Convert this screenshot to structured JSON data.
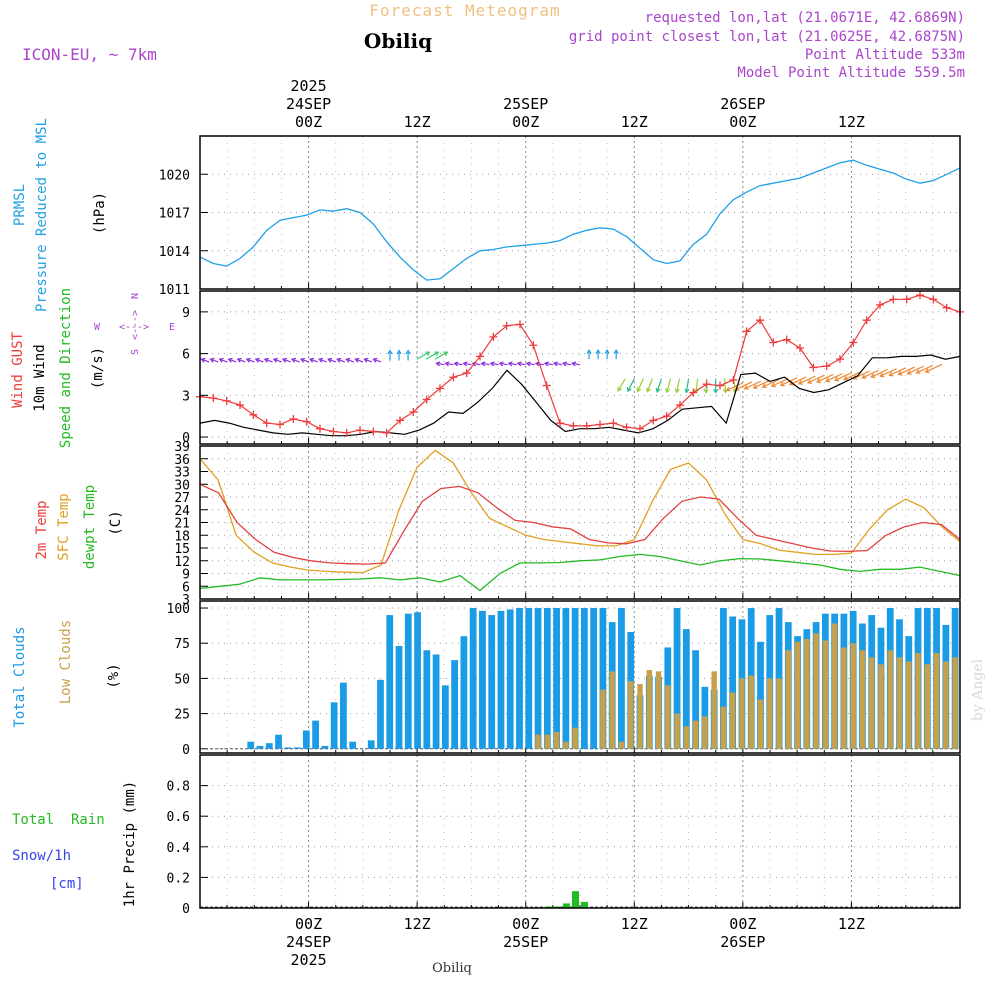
{
  "header": {
    "title": "Forecast Meteogram",
    "station": "Obiliq",
    "model": "ICON-EU, ~ 7km",
    "requested": "requested lon,lat (21.0671E, 42.6869N)",
    "grid_point": "grid point closest lon,lat (21.0625E, 42.6875N)",
    "point_altitude": "Point Altitude 533m",
    "model_altitude": "Model Point Altitude 559.5m",
    "footer_station": "Obiliq",
    "credit": "by Angel"
  },
  "time_axis": {
    "hours_total": 84,
    "ticks": [
      {
        "hour": 12,
        "label": "00Z",
        "date": "24SEP",
        "year": "2025"
      },
      {
        "hour": 24,
        "label": "12Z",
        "date": "",
        "year": ""
      },
      {
        "hour": 36,
        "label": "00Z",
        "date": "25SEP",
        "year": ""
      },
      {
        "hour": 48,
        "label": "12Z",
        "date": "",
        "year": ""
      },
      {
        "hour": 60,
        "label": "00Z",
        "date": "26SEP",
        "year": ""
      },
      {
        "hour": 72,
        "label": "12Z",
        "date": "",
        "year": ""
      }
    ]
  },
  "colors": {
    "pressure": "#1fa0e6",
    "gust": "#ee3b3b",
    "wind": "#000000",
    "winddir": "#22bb22",
    "temp": "#e44040",
    "sfctemp": "#e0a020",
    "dewpt": "#22bb22",
    "cloud_total": "#1a9be6",
    "cloud_low": "#c8a04a",
    "rain": "#22bb22",
    "snow": "#3344ee",
    "title": "#f0c080",
    "info": "#aa44cc"
  },
  "chart_data": [
    {
      "type": "line",
      "id": "pressure",
      "title": "PRMSL Pressure Reduced to MSL",
      "ylabel_lines": [
        "PRMSL",
        "Pressure Reduced to MSL"
      ],
      "unit": "(hPa)",
      "ylim": [
        1011,
        1023
      ],
      "yticks": [
        1011,
        1014,
        1017,
        1020
      ],
      "series": [
        {
          "name": "PRMSL",
          "values": [
            1013.5,
            1013.0,
            1012.8,
            1013.4,
            1014.3,
            1015.6,
            1016.4,
            1016.6,
            1016.8,
            1017.2,
            1017.1,
            1017.3,
            1017.0,
            1016.1,
            1014.7,
            1013.5,
            1012.5,
            1011.7,
            1011.8,
            1012.6,
            1013.4,
            1014.0,
            1014.1,
            1014.3,
            1014.4,
            1014.5,
            1014.6,
            1014.8,
            1015.3,
            1015.6,
            1015.8,
            1015.7,
            1015.1,
            1014.2,
            1013.3,
            1013.0,
            1013.2,
            1014.5,
            1015.3,
            1016.9,
            1018.0,
            1018.6,
            1019.1,
            1019.3,
            1019.5,
            1019.7,
            1020.1,
            1020.5,
            1020.9,
            1021.1,
            1020.7,
            1020.4,
            1020.1,
            1019.6,
            1019.3,
            1019.5,
            1020.0,
            1020.5
          ]
        }
      ]
    },
    {
      "type": "line",
      "id": "wind",
      "title": "Wind GUST / 10m Wind Speed and Direction",
      "ylabel_lines": [
        "Wind GUST",
        "10m Wind",
        "Speed and Direction"
      ],
      "unit": "(m/s)",
      "compass": {
        "north": "N",
        "south": "S",
        "west": "W",
        "east": "E",
        "arrow": "<--->"
      },
      "ylim": [
        -0.5,
        10.5
      ],
      "yticks": [
        0,
        3,
        6,
        9
      ],
      "series": [
        {
          "name": "Wind GUST",
          "values": [
            2.9,
            2.8,
            2.6,
            2.3,
            1.6,
            1.0,
            0.9,
            1.3,
            1.1,
            0.6,
            0.4,
            0.3,
            0.5,
            0.4,
            0.3,
            1.2,
            1.8,
            2.7,
            3.5,
            4.3,
            4.6,
            5.8,
            7.2,
            8.0,
            8.1,
            6.6,
            3.7,
            1.0,
            0.8,
            0.8,
            0.9,
            1.0,
            0.7,
            0.6,
            1.2,
            1.5,
            2.3,
            3.2,
            3.8,
            3.7,
            4.1,
            7.6,
            8.4,
            6.8,
            7.0,
            6.4,
            5.0,
            5.1,
            5.6,
            6.8,
            8.4,
            9.5,
            9.9,
            9.9,
            10.2,
            9.9,
            9.3,
            9.0
          ]
        },
        {
          "name": "10m Wind",
          "values": [
            1.0,
            1.2,
            1.0,
            0.7,
            0.5,
            0.3,
            0.2,
            0.3,
            0.2,
            0.1,
            0.1,
            0.2,
            0.4,
            0.3,
            0.2,
            0.5,
            1.0,
            1.8,
            1.7,
            2.5,
            3.5,
            4.8,
            3.8,
            2.5,
            1.2,
            0.4,
            0.6,
            0.6,
            0.7,
            0.5,
            0.3,
            0.6,
            1.2,
            2.0,
            2.1,
            2.2,
            1.0,
            4.5,
            4.6,
            4.0,
            4.3,
            3.5,
            3.2,
            3.4,
            3.9,
            4.4,
            5.7,
            5.7,
            5.8,
            5.8,
            5.9,
            5.6,
            5.8
          ]
        },
        {
          "name": "Speed and Direction",
          "values": []
        }
      ]
    },
    {
      "type": "line",
      "id": "temp",
      "title": "2m Temp / SFC Temp / dewpt Temp",
      "ylabel_lines": [
        "2m Temp",
        "SFC Temp",
        "dewpt Temp"
      ],
      "unit": "(C)",
      "ylim": [
        3,
        39
      ],
      "yticks": [
        3,
        6,
        9,
        12,
        15,
        18,
        21,
        24,
        27,
        30,
        33,
        36,
        39
      ],
      "series": [
        {
          "name": "2m Temp",
          "values": [
            30.0,
            28.0,
            21.0,
            17.0,
            14.0,
            12.8,
            12.0,
            11.5,
            11.3,
            11.2,
            11.5,
            19.0,
            26.0,
            29.0,
            29.5,
            28.0,
            24.5,
            21.5,
            21.0,
            20.0,
            19.5,
            17.0,
            16.2,
            16.0,
            17.0,
            22.0,
            26.0,
            27.0,
            26.5,
            22.0,
            18.0,
            17.0,
            16.0,
            15.0,
            14.3,
            14.2,
            14.4,
            18.0,
            20.0,
            21.0,
            20.5,
            17.0
          ]
        },
        {
          "name": "SFC Temp",
          "values": [
            36.0,
            31.0,
            18.0,
            14.0,
            11.5,
            10.5,
            9.8,
            9.5,
            9.3,
            9.2,
            11.0,
            24.0,
            34.0,
            38.0,
            35.0,
            28.0,
            22.0,
            20.0,
            18.0,
            17.0,
            16.5,
            16.0,
            15.5,
            15.5,
            17.0,
            26.0,
            33.5,
            35.0,
            31.0,
            23.0,
            17.0,
            16.0,
            14.5,
            14.0,
            13.5,
            13.5,
            13.8,
            19.5,
            24.0,
            26.5,
            24.5,
            20.0,
            16.5
          ]
        },
        {
          "name": "dewpt Temp",
          "values": [
            5.5,
            6.0,
            6.5,
            8.0,
            7.5,
            7.5,
            7.5,
            7.6,
            7.7,
            8.0,
            7.5,
            8.0,
            7.0,
            8.5,
            5.0,
            9.0,
            11.5,
            11.5,
            11.6,
            12.0,
            12.2,
            13.0,
            13.5,
            13.0,
            12.0,
            11.0,
            12.0,
            12.5,
            12.4,
            12.0,
            11.5,
            11.0,
            10.0,
            9.5,
            10.0,
            10.0,
            10.5,
            9.5,
            8.5
          ]
        }
      ]
    },
    {
      "type": "bar",
      "id": "clouds",
      "title": "Total Clouds / Low Clouds",
      "ylabel_lines": [
        "Total Clouds",
        "Low Clouds"
      ],
      "unit": "(%)",
      "ylim": [
        -3,
        105
      ],
      "yticks": [
        0,
        25,
        50,
        75,
        100
      ],
      "series": [
        {
          "name": "Total Clouds",
          "values": [
            0,
            0,
            0,
            0,
            0,
            5,
            2,
            4,
            10,
            1,
            1,
            13,
            20,
            2,
            33,
            47,
            5,
            0,
            6,
            49,
            95,
            73,
            96,
            97,
            70,
            67,
            45,
            63,
            80,
            100,
            98,
            95,
            98,
            99,
            100,
            100,
            100,
            100,
            100,
            100,
            100,
            100,
            100,
            100,
            90,
            100,
            83,
            38,
            52,
            51,
            72,
            100,
            85,
            70,
            44,
            42,
            100,
            94,
            92,
            100,
            76,
            95,
            100,
            90,
            80,
            85,
            90,
            96,
            96,
            96,
            98,
            89,
            95,
            86,
            100,
            92,
            80,
            100,
            100,
            100,
            88,
            100
          ]
        },
        {
          "name": "Low Clouds",
          "values": [
            0,
            0,
            0,
            0,
            0,
            0,
            0,
            0,
            0,
            0,
            0,
            0,
            0,
            0,
            0,
            0,
            0,
            0,
            0,
            0,
            0,
            0,
            0,
            0,
            0,
            0,
            0,
            0,
            0,
            0,
            0,
            0,
            0,
            0,
            0,
            0,
            10,
            10,
            12,
            5,
            15,
            0,
            0,
            42,
            55,
            5,
            48,
            46,
            56,
            55,
            45,
            25,
            16,
            20,
            23,
            55,
            30,
            40,
            50,
            52,
            35,
            50,
            50,
            70,
            76,
            78,
            82,
            77,
            89,
            72,
            75,
            70,
            65,
            60,
            70,
            65,
            62,
            68,
            60,
            68,
            62,
            65
          ]
        }
      ]
    },
    {
      "type": "bar",
      "id": "precip",
      "title": "1hr Precip",
      "ylabel_lines": [
        "Total  Rain",
        "Snow/1h",
        "[cm]"
      ],
      "unit": "1hr Precip (mm)",
      "ylim": [
        0,
        1.0
      ],
      "yticks": [
        0,
        0.2,
        0.4,
        0.6,
        0.8
      ],
      "series": [
        {
          "name": "Total Rain",
          "values": [
            {
              "hour": 38.5,
              "value": 0.01
            },
            {
              "hour": 39.5,
              "value": 0.01
            },
            {
              "hour": 40.5,
              "value": 0.03
            },
            {
              "hour": 41.5,
              "value": 0.11
            },
            {
              "hour": 42.5,
              "value": 0.04
            }
          ]
        }
      ]
    }
  ]
}
